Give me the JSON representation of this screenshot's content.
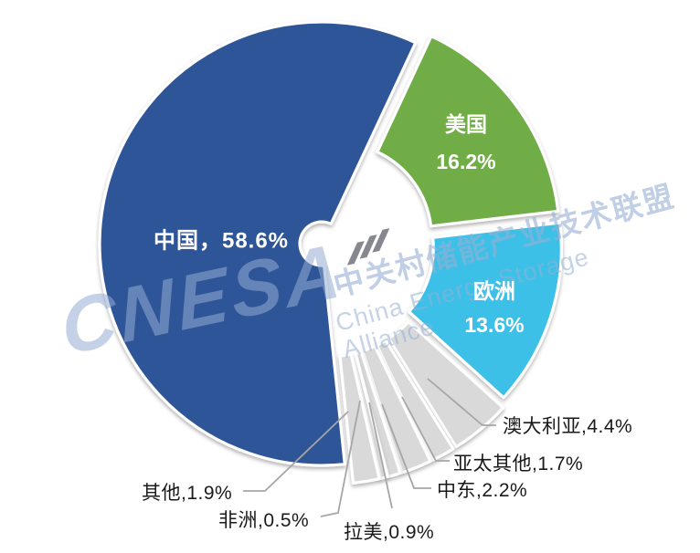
{
  "chart_data": {
    "type": "pie",
    "subtype": "exploded-donut",
    "unit": "%",
    "title": "",
    "legend": "none",
    "start_angle_deg": 25,
    "direction": "clockwise",
    "slices": [
      {
        "name": "中国",
        "value": 58.6,
        "color": "#2E5597",
        "label": "中国，58.6%",
        "value_label": "58.6%",
        "label_position": "inside"
      },
      {
        "name": "美国",
        "value": 16.2,
        "color": "#6FAD47",
        "label": "美国 16.2%",
        "value_label": "16.2%",
        "label_position": "inside"
      },
      {
        "name": "欧洲",
        "value": 13.6,
        "color": "#3EC0E8",
        "label": "欧洲 13.6%",
        "value_label": "13.6%",
        "label_position": "inside"
      },
      {
        "name": "澳大利亚",
        "value": 4.4,
        "color": "#D9D9D9",
        "label": "澳大利亚,4.4%",
        "value_label": "4.4%",
        "label_position": "callout"
      },
      {
        "name": "亚太其他",
        "value": 1.7,
        "color": "#D9D9D9",
        "label": "亚太其他,1.7%",
        "value_label": "1.7%",
        "label_position": "callout"
      },
      {
        "name": "中东",
        "value": 2.2,
        "color": "#D9D9D9",
        "label": "中东,2.2%",
        "value_label": "2.2%",
        "label_position": "callout"
      },
      {
        "name": "拉美",
        "value": 0.9,
        "color": "#D9D9D9",
        "label": "拉美,0.9%",
        "value_label": "0.9%",
        "label_position": "callout"
      },
      {
        "name": "非洲",
        "value": 0.5,
        "color": "#D9D9D9",
        "label": "非洲,0.5%",
        "value_label": "0.5%",
        "label_position": "callout"
      },
      {
        "name": "其他",
        "value": 1.9,
        "color": "#D9D9D9",
        "label": "其他,1.9%",
        "value_label": "1.9%",
        "label_position": "callout"
      }
    ]
  },
  "watermark": {
    "brand": "CNESA",
    "cn_line": "中关村储能产业技术联盟",
    "en_line": "China Energy Storage Alliance",
    "color": "#94ACD1"
  },
  "colors": {
    "china_blue": "#2E5597",
    "us_green": "#6FAD47",
    "europe_cyan": "#3EC0E8",
    "small_slice_gray": "#D9D9D9",
    "leader_line_gray": "#A6A6A6",
    "background": "#FFFFFF"
  }
}
